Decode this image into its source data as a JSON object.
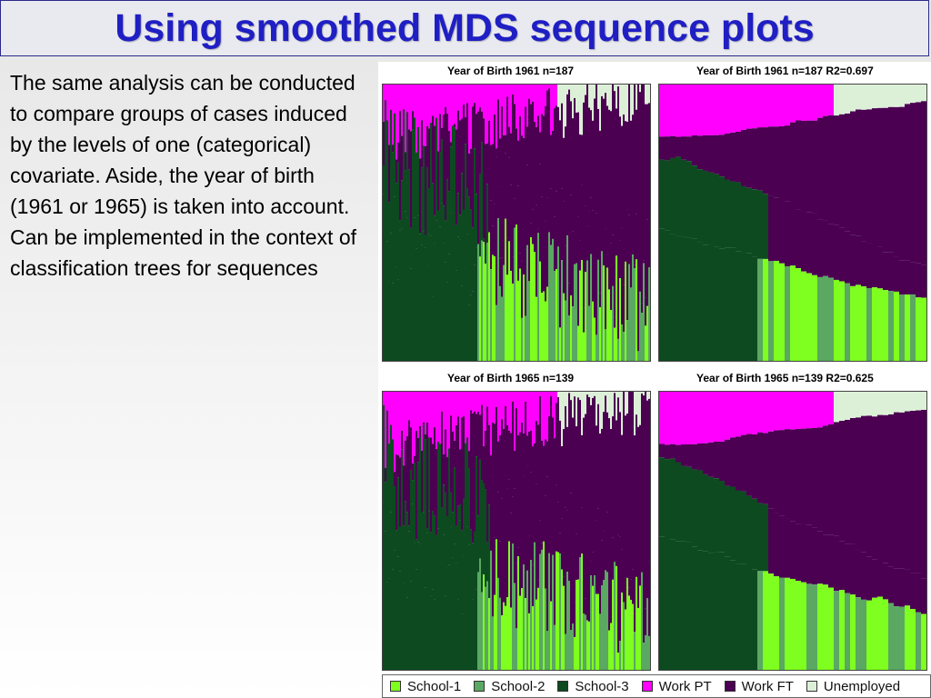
{
  "title": "Using smoothed MDS sequence plots",
  "paragraphs": [
    "The same analysis can be conducted to compare groups of cases induced by the levels of one (categorical) covariate. Aside, the year of birth (1961 or 1965) is taken into account.",
    "Can be implemented in the context of classification trees for sequences"
  ],
  "panels": [
    {
      "title": "Year of Birth 1961  n=187",
      "smoothed": false
    },
    {
      "title": "Year of Birth 1961  n=187  R2=0.697",
      "smoothed": true
    },
    {
      "title": "Year of Birth 1965  n=139",
      "smoothed": false
    },
    {
      "title": "Year of Birth 1965  n=139  R2=0.625",
      "smoothed": true
    }
  ],
  "legend": [
    {
      "label": "School-1",
      "color": "#7fff1f"
    },
    {
      "label": "School-2",
      "color": "#5aa862"
    },
    {
      "label": "School-3",
      "color": "#0d4a20"
    },
    {
      "label": "Work PT",
      "color": "#ff00ff"
    },
    {
      "label": "Work FT",
      "color": "#4b0052"
    },
    {
      "label": "Unemployed",
      "color": "#dcf0d8"
    }
  ]
}
